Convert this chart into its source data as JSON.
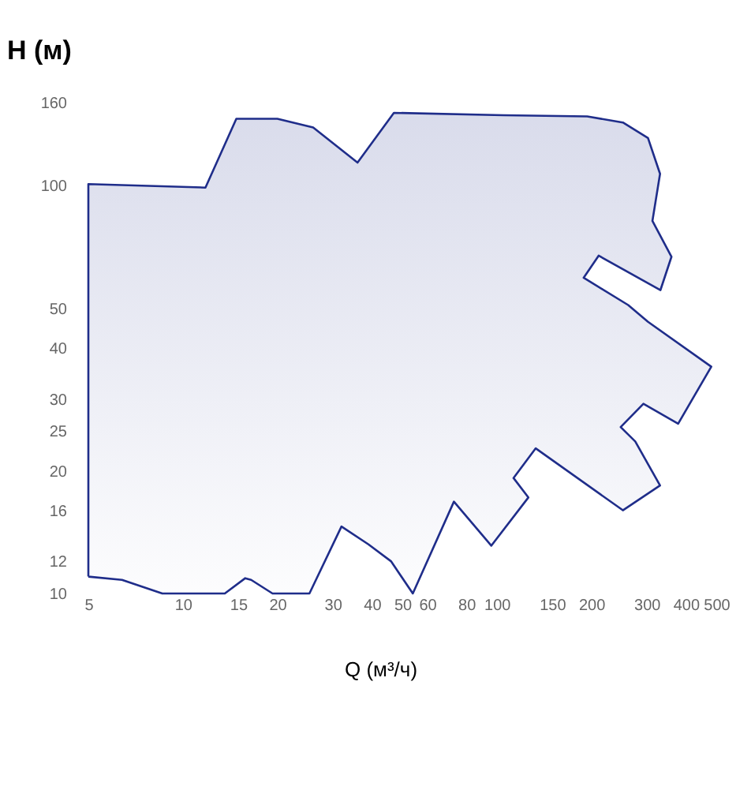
{
  "chart_data": {
    "type": "area",
    "xlabel": "Q (м³/ч)",
    "ylabel": "H (м)",
    "log": "xy",
    "grid": false,
    "xlim": [
      5,
      500
    ],
    "xticks": [
      5,
      10,
      15,
      20,
      30,
      40,
      50,
      60,
      80,
      100,
      150,
      200,
      300,
      400,
      500
    ],
    "ylim": [
      10,
      160
    ],
    "yticks": [
      10,
      12,
      16,
      20,
      25,
      30,
      40,
      50,
      100,
      160
    ],
    "series": [
      {
        "color": "#1f2d8a",
        "x": [
          5,
          6.4,
          8.6,
          13.6,
          15.8,
          16.5,
          19.3,
          25.3,
          32,
          39,
          46,
          54,
          73,
          96,
          126,
          113,
          133,
          252,
          331,
          276,
          248,
          293,
          378,
          482,
          303,
          262,
          189,
          211,
          332,
          360,
          313,
          331,
          303,
          252,
          194,
          105,
          47,
          36,
          26,
          20,
          14.8,
          11.8,
          5
        ],
        "values": [
          11,
          10.8,
          10,
          10,
          10.9,
          10.8,
          10,
          10,
          14.6,
          13.2,
          12,
          10,
          16.8,
          13.1,
          17.2,
          19.2,
          22.7,
          16,
          18.4,
          23.6,
          25.6,
          29.2,
          26.1,
          36,
          46.4,
          51,
          59.5,
          67.4,
          55.5,
          67,
          82,
          107,
          131,
          143,
          148,
          149,
          151,
          114,
          139,
          146,
          146,
          99,
          101
        ]
      }
    ]
  }
}
